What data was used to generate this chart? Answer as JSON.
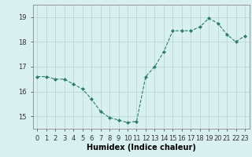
{
  "x": [
    0,
    1,
    2,
    3,
    4,
    5,
    6,
    7,
    8,
    9,
    10,
    11,
    12,
    13,
    14,
    15,
    16,
    17,
    18,
    19,
    20,
    21,
    22,
    23
  ],
  "y": [
    16.6,
    16.6,
    16.5,
    16.5,
    16.3,
    16.1,
    15.7,
    15.2,
    14.95,
    14.85,
    14.75,
    14.8,
    16.6,
    17.0,
    17.6,
    18.45,
    18.45,
    18.45,
    18.6,
    18.95,
    18.75,
    18.3,
    18.0,
    18.25
  ],
  "line_color": "#2d7d6e",
  "marker": "D",
  "marker_size": 2,
  "bg_color": "#d8f0f0",
  "grid_color": "#b8d8d8",
  "xlabel": "Humidex (Indice chaleur)",
  "ylim": [
    14.5,
    19.5
  ],
  "xlim": [
    -0.5,
    23.5
  ],
  "yticks": [
    15,
    16,
    17,
    18,
    19
  ],
  "xtick_labels": [
    "0",
    "1",
    "2",
    "3",
    "4",
    "5",
    "6",
    "7",
    "8",
    "9",
    "10",
    "11",
    "12",
    "13",
    "14",
    "15",
    "16",
    "17",
    "18",
    "19",
    "20",
    "21",
    "22",
    "23"
  ],
  "label_fontsize": 7,
  "tick_fontsize": 6
}
